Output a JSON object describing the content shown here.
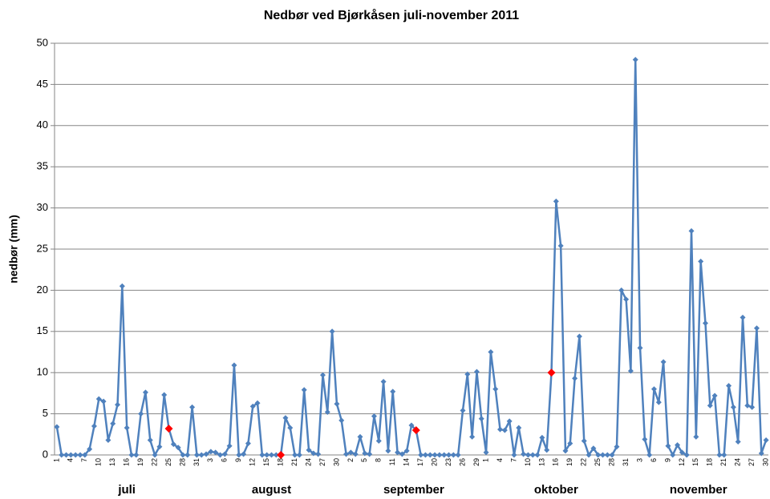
{
  "chart_data": {
    "type": "line",
    "title": "Nedbør ved Bjørkåsen juli-november 2011",
    "y_label": "nedbør (mm)",
    "categories": [
      1,
      null,
      null,
      4,
      null,
      null,
      7,
      null,
      null,
      10,
      null,
      null,
      13,
      null,
      null,
      16,
      null,
      null,
      19,
      null,
      null,
      22,
      null,
      null,
      25,
      null,
      null,
      28,
      null,
      null,
      31,
      null,
      null,
      3,
      null,
      null,
      6,
      null,
      null,
      9,
      null,
      null,
      12,
      null,
      null,
      15,
      null,
      null,
      18,
      null,
      null,
      21,
      null,
      null,
      24,
      null,
      null,
      27,
      null,
      null,
      30,
      null,
      null,
      2,
      null,
      null,
      5,
      null,
      null,
      8,
      null,
      null,
      11,
      null,
      null,
      14,
      null,
      null,
      17,
      null,
      null,
      20,
      null,
      null,
      23,
      null,
      null,
      26,
      null,
      null,
      29,
      null,
      1,
      null,
      null,
      4,
      null,
      null,
      7,
      null,
      null,
      10,
      null,
      null,
      13,
      null,
      null,
      16,
      null,
      null,
      19,
      null,
      null,
      22,
      null,
      null,
      25,
      null,
      null,
      28,
      null,
      null,
      31,
      null,
      null,
      3,
      null,
      null,
      6,
      null,
      null,
      9,
      null,
      null,
      12,
      null,
      null,
      15,
      null,
      null,
      18,
      null,
      null,
      21,
      null,
      null,
      24,
      null,
      null,
      27,
      null,
      null,
      30
    ],
    "months": [
      {
        "label": "juli",
        "days": 31
      },
      {
        "label": "august",
        "days": 31
      },
      {
        "label": "september",
        "days": 30
      },
      {
        "label": "oktober",
        "days": 31
      },
      {
        "label": "november",
        "days": 30
      }
    ],
    "series": [
      {
        "color": "#4f81bd",
        "values": [
          3.4,
          0,
          0,
          0,
          0,
          0,
          0,
          0.7,
          3.5,
          6.8,
          6.5,
          1.8,
          3.8,
          6.1,
          20.5,
          3.3,
          0,
          0,
          5.0,
          7.6,
          1.8,
          0,
          1.0,
          7.3,
          3.2,
          1.3,
          0.9,
          0,
          0,
          5.8,
          0,
          0,
          0.1,
          0.4,
          0.3,
          0,
          0.1,
          1.1,
          10.9,
          0,
          0.1,
          1.4,
          5.9,
          6.3,
          0,
          0,
          0,
          0,
          0,
          4.5,
          3.3,
          0,
          0,
          7.9,
          0.6,
          0.2,
          0.1,
          9.7,
          5.2,
          15.0,
          6.2,
          4.2,
          0.1,
          0.3,
          0.1,
          2.2,
          0.2,
          0.1,
          4.7,
          1.7,
          8.9,
          0.5,
          7.7,
          0.3,
          0.1,
          0.5,
          3.6,
          3.0,
          0,
          0,
          0,
          0,
          0,
          0,
          0,
          0,
          0,
          5.4,
          9.8,
          2.2,
          10.1,
          4.4,
          0.3,
          12.5,
          8.0,
          3.1,
          3.0,
          4.1,
          0,
          3.3,
          0.1,
          0,
          0,
          0,
          2.1,
          0.6,
          10.0,
          30.8,
          25.4,
          0.5,
          1.4,
          9.3,
          14.4,
          1.7,
          0,
          0.8,
          0,
          0,
          0,
          0,
          1.0,
          20.0,
          18.9,
          10.2,
          48.0,
          13.0,
          1.9,
          0,
          8.0,
          6.4,
          11.3,
          1.1,
          0,
          1.2,
          0.3,
          0,
          27.2,
          2.2,
          23.5,
          16.0,
          6.0,
          7.2,
          0,
          0,
          8.4,
          5.8,
          1.6,
          16.7,
          6.0,
          5.8,
          15.4,
          0.2,
          1.8
        ]
      }
    ],
    "highlight": {
      "color": "#ff0000",
      "indices": [
        24,
        48,
        77,
        106
      ]
    },
    "ylim": [
      0,
      50
    ],
    "yticks": [
      0,
      5,
      10,
      15,
      20,
      25,
      30,
      35,
      40,
      45,
      50
    ],
    "grid": true
  }
}
